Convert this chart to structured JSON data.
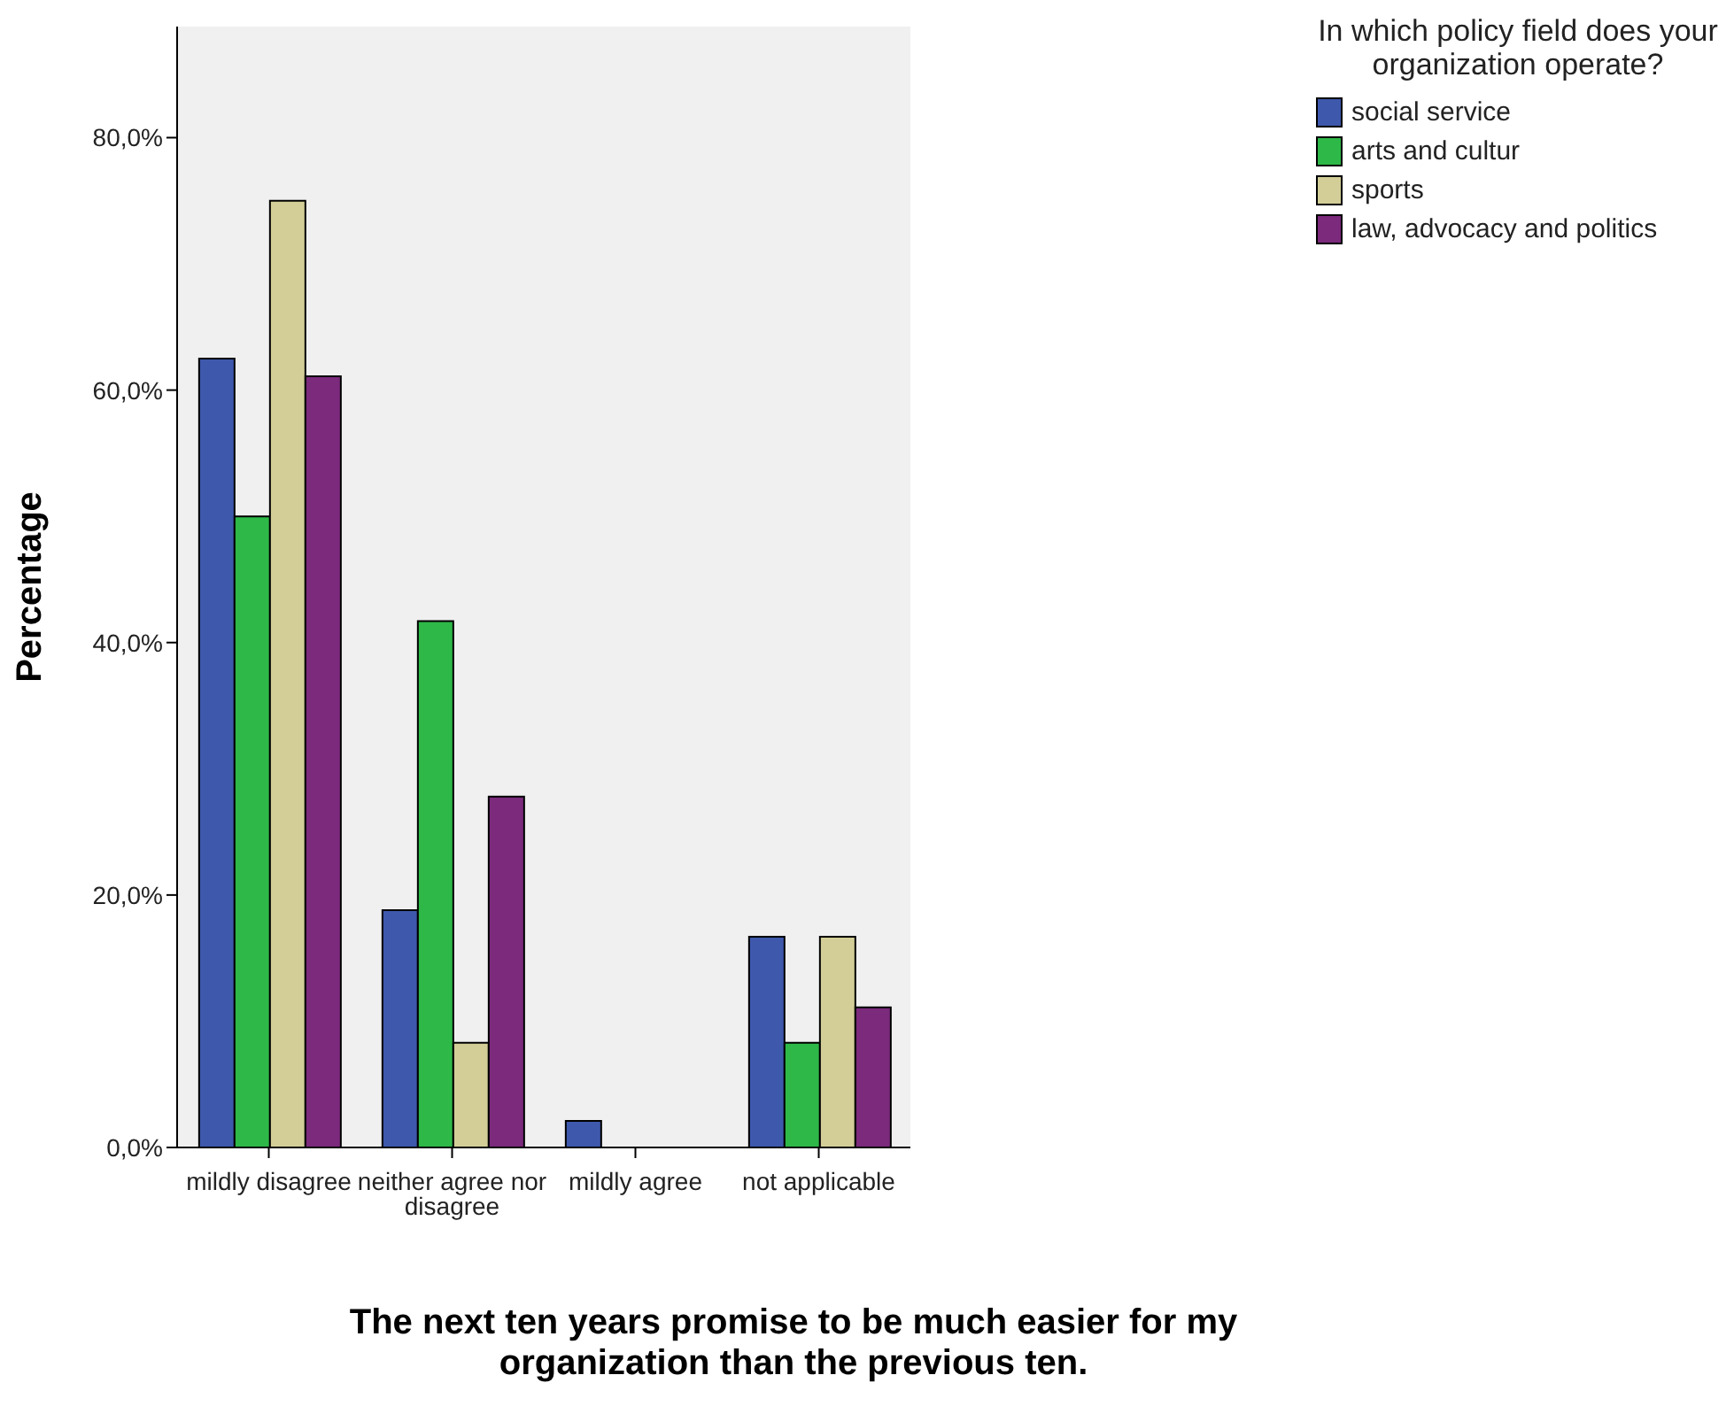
{
  "chart_data": {
    "type": "bar",
    "xlabel": "The next ten years promise to be much easier for my organization than the previous ten.",
    "ylabel": "Percentage",
    "legend_title": "In which policy field does your organization operate?",
    "categories": [
      "mildly disagree",
      "neither agree nor disagree",
      "mildly agree",
      "not applicable"
    ],
    "series": [
      {
        "name": "social service",
        "color": "#3e58ac",
        "values": [
          62.5,
          18.8,
          2.1,
          16.7
        ]
      },
      {
        "name": "arts and cultur",
        "color": "#2eb848",
        "values": [
          50,
          41.7,
          0,
          8.3
        ]
      },
      {
        "name": "sports",
        "color": "#d3ce97",
        "values": [
          75,
          8.3,
          0,
          16.7
        ]
      },
      {
        "name": "law, advocacy and politics",
        "color": "#7b2a7c",
        "values": [
          61.1,
          27.8,
          0,
          11.1
        ]
      }
    ],
    "ylim": [
      0,
      88.8
    ],
    "yticks": [
      {
        "value": 0,
        "label": "0,0%"
      },
      {
        "value": 20,
        "label": "20,0%"
      },
      {
        "value": 40,
        "label": "40,0%"
      },
      {
        "value": 60,
        "label": "60,0%"
      },
      {
        "value": 80,
        "label": "80,0%"
      }
    ],
    "grid": false,
    "legend": "top right"
  }
}
